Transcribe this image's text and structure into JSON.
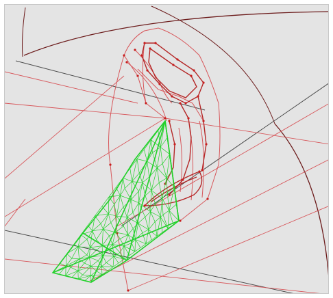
{
  "viewport": {
    "background_color": "#e4e4e4",
    "border_color": "#c8c8c8"
  },
  "colors": {
    "outline_red": "#d7565a",
    "edge_dark_red": "#b42626",
    "vertex_red": "#c81e1e",
    "mesh_green": "#22d12a",
    "axis_gray": "#4a4a4a",
    "arc_dark": "#6b1a1a"
  }
}
